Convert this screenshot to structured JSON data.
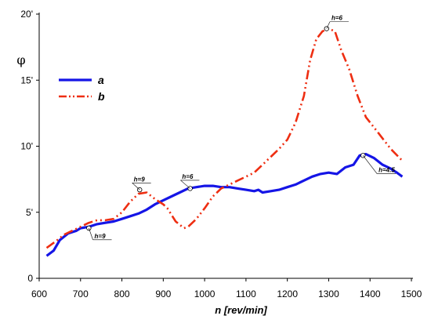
{
  "chart_data": {
    "type": "line",
    "title": "",
    "xlabel": "n [rev/min]",
    "ylabel": "φ",
    "xlim": [
      600,
      1500
    ],
    "ylim": [
      0,
      20
    ],
    "x_ticks": [
      "600",
      "700",
      "800",
      "900",
      "1000",
      "1100",
      "1200",
      "1300",
      "1400",
      "1500"
    ],
    "y_ticks": [
      "0",
      "5'",
      "10'",
      "15'",
      "20'"
    ],
    "grid": false,
    "legend_position": "top-left",
    "series": [
      {
        "name": "a",
        "color": "#1515e6",
        "style": "solid",
        "points": [
          [
            618,
            1.7
          ],
          [
            635,
            2.1
          ],
          [
            650,
            2.9
          ],
          [
            670,
            3.4
          ],
          [
            690,
            3.6
          ],
          [
            700,
            3.8
          ],
          [
            720,
            3.9
          ],
          [
            740,
            4.1
          ],
          [
            760,
            4.2
          ],
          [
            780,
            4.3
          ],
          [
            800,
            4.5
          ],
          [
            820,
            4.7
          ],
          [
            840,
            4.9
          ],
          [
            860,
            5.2
          ],
          [
            880,
            5.6
          ],
          [
            900,
            5.9
          ],
          [
            920,
            6.2
          ],
          [
            940,
            6.5
          ],
          [
            960,
            6.8
          ],
          [
            980,
            6.9
          ],
          [
            1000,
            7.0
          ],
          [
            1020,
            7.0
          ],
          [
            1040,
            6.9
          ],
          [
            1060,
            6.9
          ],
          [
            1080,
            6.8
          ],
          [
            1100,
            6.7
          ],
          [
            1120,
            6.6
          ],
          [
            1130,
            6.7
          ],
          [
            1140,
            6.5
          ],
          [
            1160,
            6.6
          ],
          [
            1180,
            6.7
          ],
          [
            1200,
            6.9
          ],
          [
            1220,
            7.1
          ],
          [
            1240,
            7.4
          ],
          [
            1260,
            7.7
          ],
          [
            1280,
            7.9
          ],
          [
            1300,
            8.0
          ],
          [
            1320,
            7.9
          ],
          [
            1340,
            8.4
          ],
          [
            1360,
            8.6
          ],
          [
            1375,
            9.3
          ],
          [
            1390,
            9.4
          ],
          [
            1410,
            9.1
          ],
          [
            1430,
            8.6
          ],
          [
            1450,
            8.3
          ],
          [
            1465,
            8.0
          ],
          [
            1478,
            7.7
          ]
        ]
      },
      {
        "name": "b",
        "color": "#ee2e12",
        "style": "dash-dot-dot",
        "points": [
          [
            618,
            2.3
          ],
          [
            640,
            2.8
          ],
          [
            660,
            3.3
          ],
          [
            680,
            3.6
          ],
          [
            700,
            3.9
          ],
          [
            720,
            4.2
          ],
          [
            740,
            4.4
          ],
          [
            760,
            4.4
          ],
          [
            780,
            4.5
          ],
          [
            800,
            5.0
          ],
          [
            820,
            5.8
          ],
          [
            840,
            6.4
          ],
          [
            860,
            6.5
          ],
          [
            880,
            6.0
          ],
          [
            900,
            5.6
          ],
          [
            910,
            5.3
          ],
          [
            930,
            4.3
          ],
          [
            950,
            3.8
          ],
          [
            960,
            3.9
          ],
          [
            980,
            4.5
          ],
          [
            1000,
            5.3
          ],
          [
            1020,
            6.2
          ],
          [
            1040,
            6.8
          ],
          [
            1060,
            7.1
          ],
          [
            1080,
            7.4
          ],
          [
            1100,
            7.7
          ],
          [
            1120,
            8.0
          ],
          [
            1140,
            8.6
          ],
          [
            1160,
            9.2
          ],
          [
            1180,
            9.8
          ],
          [
            1200,
            10.5
          ],
          [
            1220,
            11.8
          ],
          [
            1240,
            13.8
          ],
          [
            1255,
            16.5
          ],
          [
            1270,
            18.1
          ],
          [
            1285,
            18.7
          ],
          [
            1300,
            18.9
          ],
          [
            1315,
            18.7
          ],
          [
            1330,
            17.3
          ],
          [
            1350,
            15.8
          ],
          [
            1370,
            13.8
          ],
          [
            1390,
            12.2
          ],
          [
            1420,
            11.0
          ],
          [
            1450,
            9.8
          ],
          [
            1478,
            8.9
          ]
        ]
      }
    ],
    "annotations": [
      {
        "text": "h=9",
        "series": "a",
        "x": 720,
        "y": 3.8,
        "label_at": [
          745,
          3.1
        ]
      },
      {
        "text": "h=9",
        "series": "b",
        "x": 843,
        "y": 6.7,
        "label_at": [
          840,
          7.4
        ]
      },
      {
        "text": "h=6",
        "series": "a",
        "x": 965,
        "y": 6.8,
        "label_at": [
          957,
          7.6
        ]
      },
      {
        "text": "h=6",
        "series": "b",
        "x": 1295,
        "y": 18.9,
        "label_at": [
          1318,
          19.6
        ]
      },
      {
        "text": "h=4.5",
        "series": "a",
        "x": 1383,
        "y": 9.3,
        "label_at": [
          1432,
          8.1
        ]
      }
    ]
  }
}
